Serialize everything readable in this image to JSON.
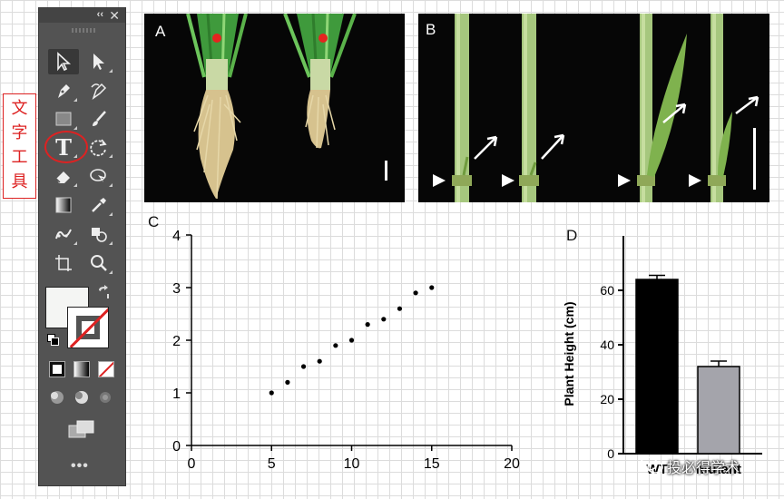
{
  "annotation": {
    "label": "文字工具",
    "color": "#d22222"
  },
  "tools_panel": {
    "collapse_glyph": "‹‹",
    "close_glyph": "✕",
    "tools": [
      {
        "name": "selection-tool",
        "icon": "arrow-icon"
      },
      {
        "name": "direct-selection-tool",
        "icon": "white-arrow-icon"
      },
      {
        "name": "pen-tool",
        "icon": "pen-icon"
      },
      {
        "name": "curvature-tool",
        "icon": "curvature-pen-icon"
      },
      {
        "name": "rectangle-tool",
        "icon": "rectangle-icon"
      },
      {
        "name": "paintbrush-tool",
        "icon": "brush-icon"
      },
      {
        "name": "type-tool",
        "icon": "type-icon",
        "glyph": "T"
      },
      {
        "name": "rotate-tool",
        "icon": "rotate-icon"
      },
      {
        "name": "eraser-tool",
        "icon": "eraser-icon"
      },
      {
        "name": "shape-builder-tool",
        "icon": "lasso-icon"
      },
      {
        "name": "gradient-tool",
        "icon": "gradient-icon"
      },
      {
        "name": "eyedropper-tool",
        "icon": "eyedropper-icon"
      },
      {
        "name": "puppet-warp-tool",
        "icon": "puppet-icon"
      },
      {
        "name": "symbol-sprayer-tool",
        "icon": "symbol-icon"
      },
      {
        "name": "artboard-tool",
        "icon": "artboard-icon"
      },
      {
        "name": "zoom-tool",
        "icon": "magnifier-icon"
      }
    ],
    "fill_color": "#f4f5f3",
    "stroke": "none",
    "more_glyph": "•••"
  },
  "figure": {
    "panel_a": {
      "letter": "A"
    },
    "panel_b": {
      "letter": "B"
    },
    "panel_c": {
      "letter": "C"
    },
    "panel_d": {
      "letter": "D"
    }
  },
  "chart_data": [
    {
      "type": "scatter",
      "panel": "C",
      "x": [
        5,
        6,
        7,
        8,
        9,
        10,
        11,
        12,
        13,
        14,
        15
      ],
      "y": [
        1.0,
        1.2,
        1.5,
        1.6,
        1.9,
        2.0,
        2.3,
        2.4,
        2.6,
        2.9,
        3.0
      ],
      "xlim": [
        0,
        20
      ],
      "ylim": [
        0,
        4
      ],
      "xticks": [
        0,
        5,
        10,
        15,
        20
      ],
      "yticks": [
        0,
        1,
        2,
        3,
        4
      ],
      "xlabel": "",
      "ylabel": "",
      "grid": false
    },
    {
      "type": "bar",
      "panel": "D",
      "categories": [
        "WT",
        "mutant"
      ],
      "values": [
        64,
        32
      ],
      "errors": [
        1.5,
        2
      ],
      "colors": [
        "#000000",
        "#a4a4ab"
      ],
      "ylabel": "Plant Height (cm)",
      "ylim": [
        0,
        80
      ],
      "yticks": [
        0,
        20,
        40,
        60
      ]
    }
  ],
  "watermark": {
    "text": "投必得学术"
  }
}
